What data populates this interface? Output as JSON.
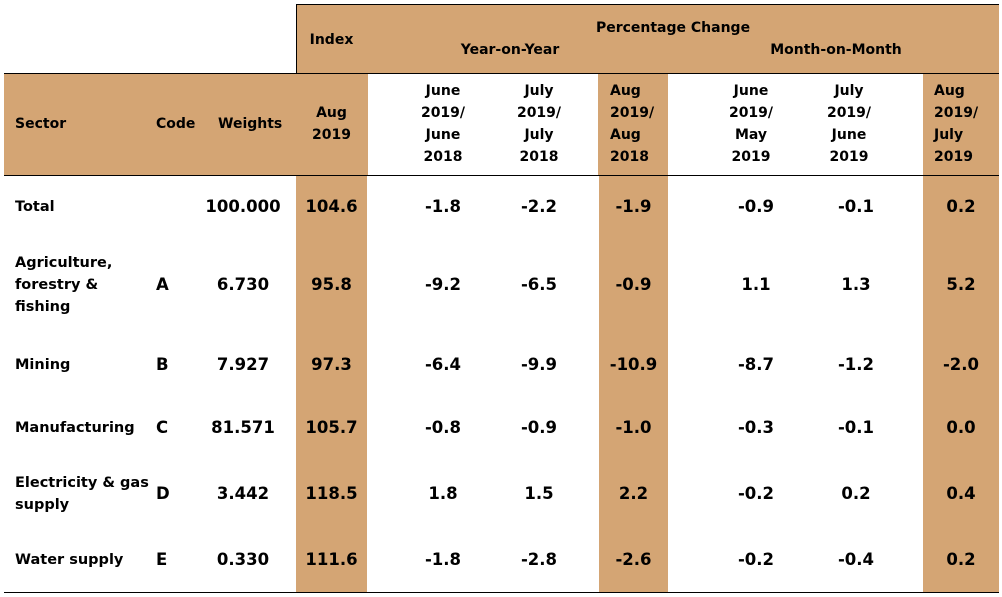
{
  "colors": {
    "header_shade": "#d4a574",
    "text": "#000000",
    "rule": "#000000"
  },
  "header": {
    "index_label": "Index",
    "pct_change_label": "Percentage Change",
    "yoy_label": "Year-on-Year",
    "mom_label": "Month-on-Month",
    "sector": "Sector",
    "code": "Code",
    "weights": "Weights",
    "index_period": "Aug\n2019",
    "yoy_cols": [
      "June\n2019/\nJune\n2018",
      "July\n2019/\nJuly\n2018",
      "Aug\n2019/\nAug\n2018"
    ],
    "mom_cols": [
      "June\n2019/\nMay\n2019",
      "July\n2019/\nJune\n2019",
      "Aug\n2019/\nJuly\n2019"
    ]
  },
  "rows": [
    {
      "sector": "Total",
      "code": "",
      "weight": "100.000",
      "index": "104.6",
      "yoy": [
        "-1.8",
        "-2.2",
        "-1.9"
      ],
      "mom": [
        "-0.9",
        "-0.1",
        "0.2"
      ]
    },
    {
      "sector": "Agriculture,\nforestry &\nfishing",
      "code": "A",
      "weight": "6.730",
      "index": "95.8",
      "yoy": [
        "-9.2",
        "-6.5",
        "-0.9"
      ],
      "mom": [
        "1.1",
        "1.3",
        "5.2"
      ]
    },
    {
      "sector": "Mining",
      "code": "B",
      "weight": "7.927",
      "index": "97.3",
      "yoy": [
        "-6.4",
        "-9.9",
        "-10.9"
      ],
      "mom": [
        "-8.7",
        "-1.2",
        "-2.0"
      ]
    },
    {
      "sector": "Manufacturing",
      "code": "C",
      "weight": "81.571",
      "index": "105.7",
      "yoy": [
        "-0.8",
        "-0.9",
        "-1.0"
      ],
      "mom": [
        "-0.3",
        "-0.1",
        "0.0"
      ]
    },
    {
      "sector": "Electricity & gas\nsupply",
      "code": "D",
      "weight": "3.442",
      "index": "118.5",
      "yoy": [
        "1.8",
        "1.5",
        "2.2"
      ],
      "mom": [
        "-0.2",
        "0.2",
        "0.4"
      ]
    },
    {
      "sector": "Water supply",
      "code": "E",
      "weight": "0.330",
      "index": "111.6",
      "yoy": [
        "-1.8",
        "-2.8",
        "-2.6"
      ],
      "mom": [
        "-0.2",
        "-0.4",
        "0.2"
      ]
    }
  ]
}
